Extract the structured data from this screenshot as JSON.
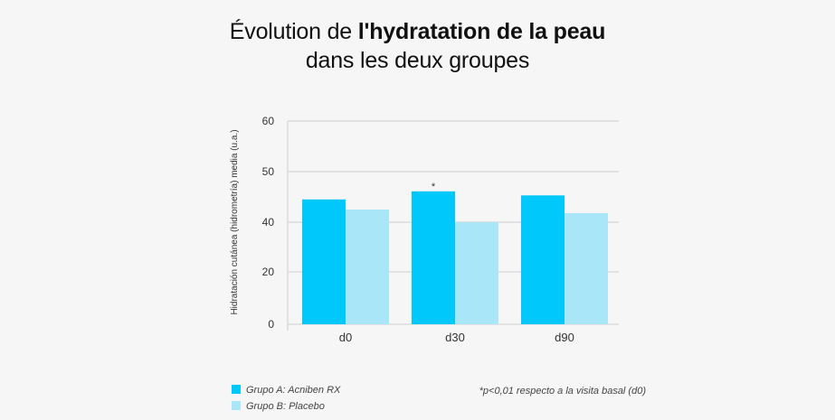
{
  "title": {
    "line1_regular": "Évolution de ",
    "line1_bold": "l'hydratation de la peau",
    "line2": "dans les deux groupes"
  },
  "colors": {
    "series_a": "#00c8fb",
    "series_b": "#a8e6f8",
    "grid": "#cfcfcf",
    "axis_text": "#333333",
    "background": "#f6f6f6"
  },
  "chart_data": {
    "type": "bar",
    "categories": [
      "d0",
      "d30",
      "d90"
    ],
    "series": [
      {
        "name": "Grupo A: Acniben RX",
        "values": [
          44.5,
          46.1,
          45.3
        ]
      },
      {
        "name": "Grupo B: Placebo",
        "values": [
          42.5,
          40.0,
          41.8
        ]
      }
    ],
    "annotations": [
      {
        "category": "d30",
        "series": 0,
        "text": "*"
      }
    ],
    "ylabel": "Hidratación cutánea (hidrometría) media (u.a.)",
    "xlabel": "",
    "y_ticks": [
      {
        "label": "0",
        "value": 0
      },
      {
        "label": "20",
        "value": 20
      },
      {
        "label": "40",
        "value": 40
      },
      {
        "label": "50",
        "value": 50
      },
      {
        "label": "60",
        "value": 60
      }
    ],
    "ylim": [
      0,
      60
    ],
    "axis_break": "between 20 and 40",
    "grid": true,
    "legend_position": "bottom-left"
  },
  "footnote": "*p<0,01 respecto a la visita basal (d0)"
}
